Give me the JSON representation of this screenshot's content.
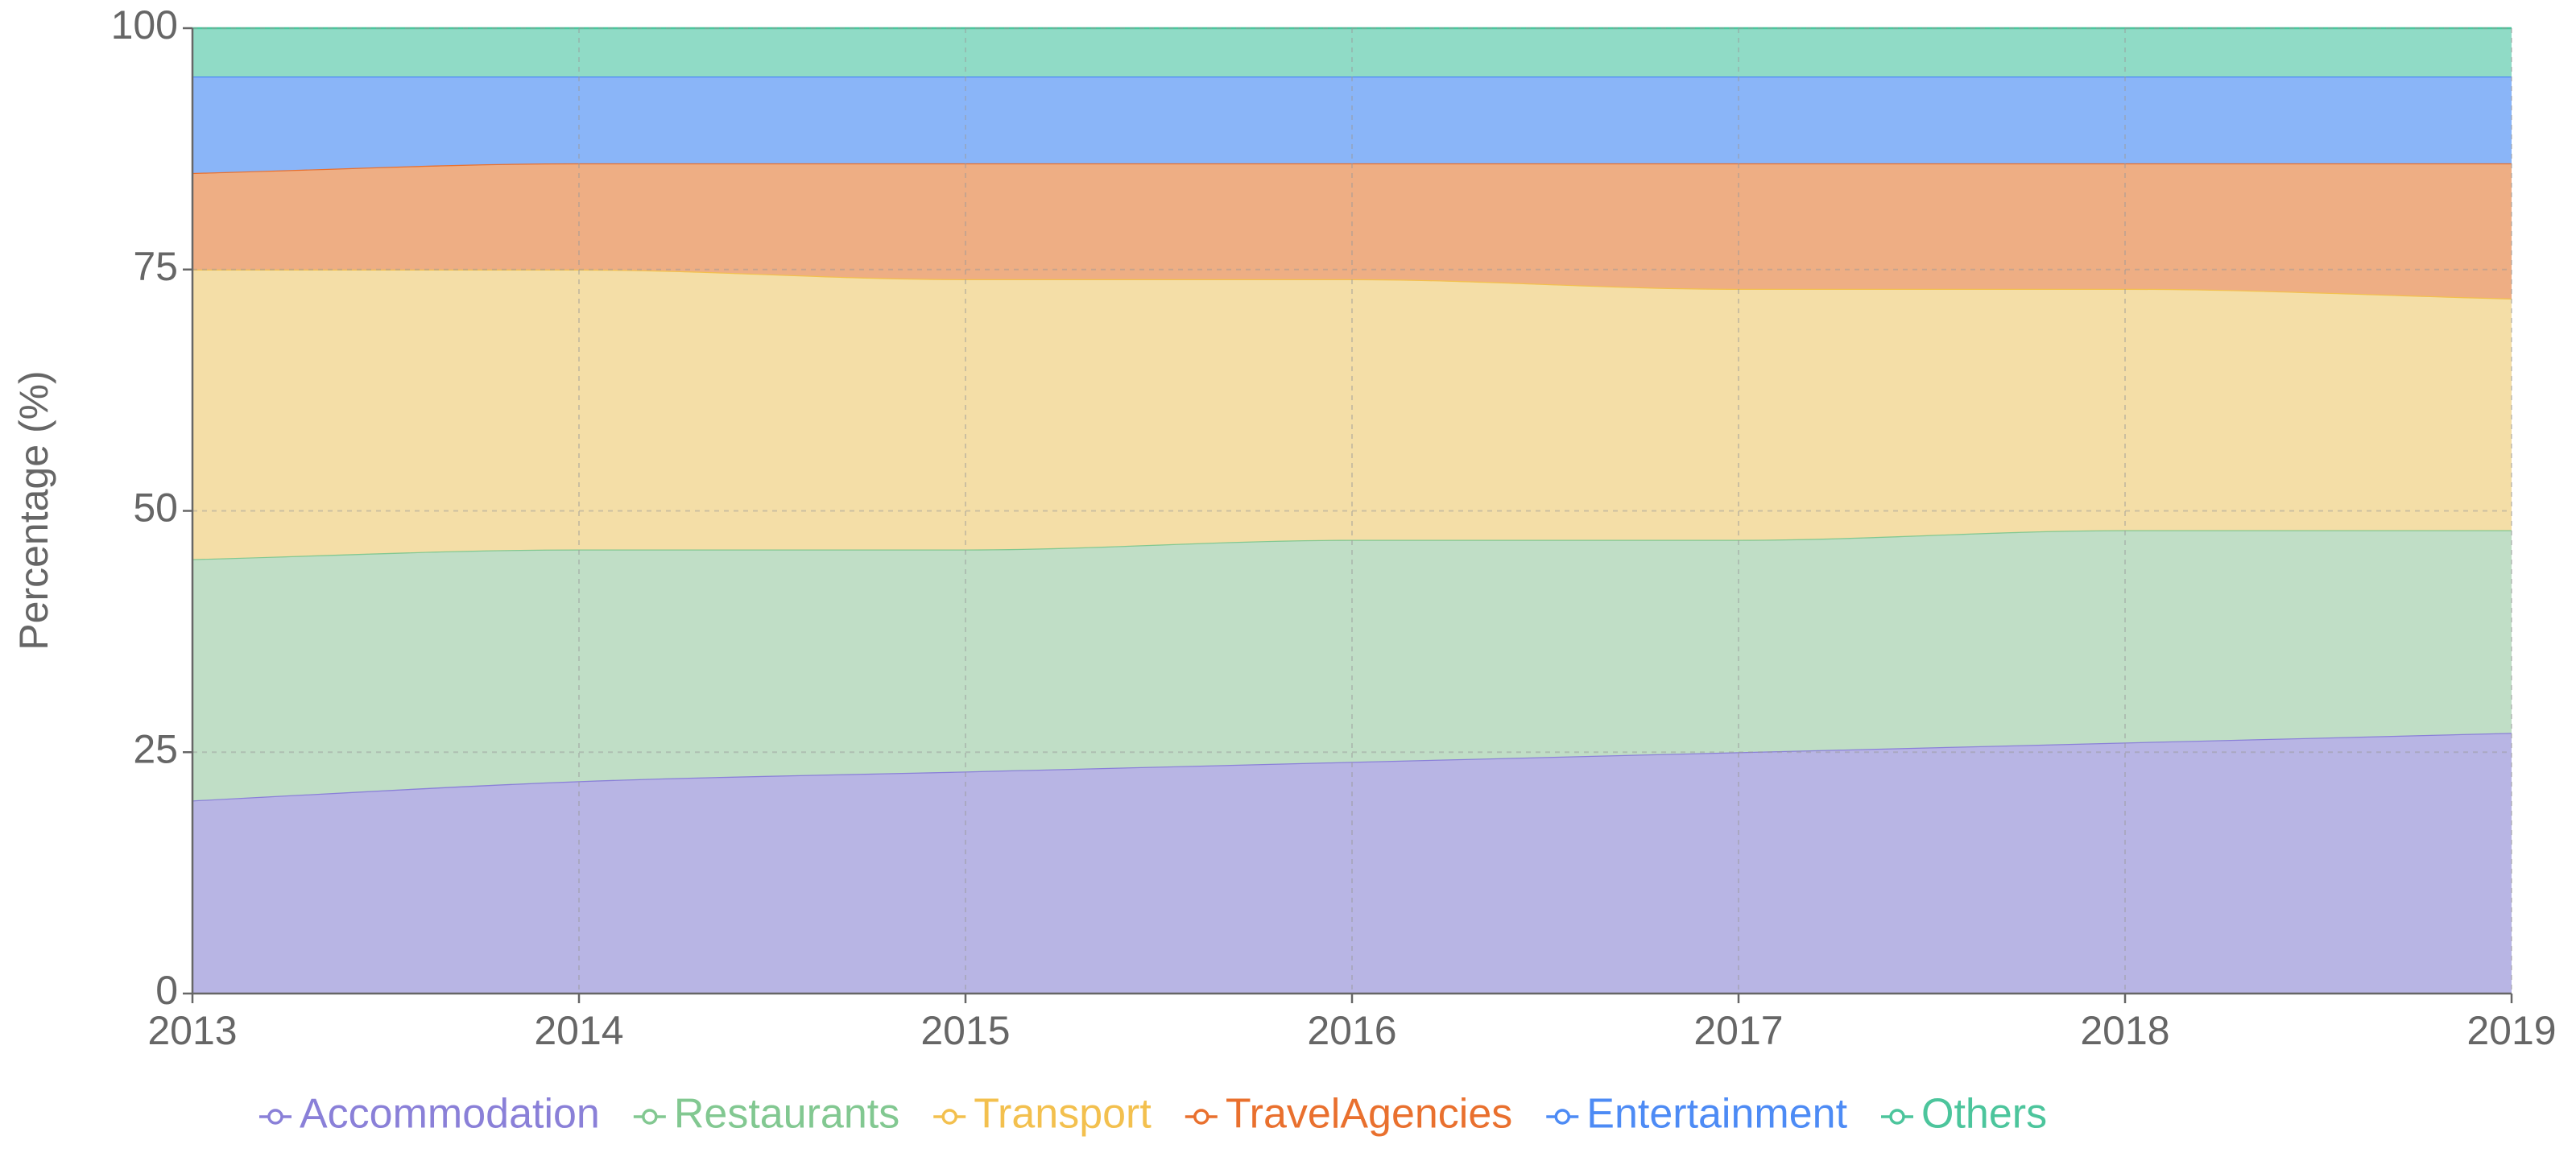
{
  "chart_data": {
    "type": "stacked-area",
    "y_label": "Percentage (%)",
    "x": [
      2013,
      2014,
      2015,
      2016,
      2017,
      2018,
      2019
    ],
    "xlim": [
      2013,
      2019
    ],
    "xticks": [
      2013,
      2014,
      2015,
      2016,
      2017,
      2018,
      2019
    ],
    "ylim": [
      0,
      100
    ],
    "yticks": [
      0,
      25,
      50,
      75,
      100
    ],
    "grid": true,
    "series": [
      {
        "name": "Accommodation",
        "color": "#8a80d8",
        "fill": "#b8b5e4",
        "values": [
          20,
          22,
          23,
          24,
          25,
          26,
          27
        ]
      },
      {
        "name": "Restaurants",
        "color": "#82c891",
        "fill": "#c0dec6",
        "values": [
          25,
          24,
          23,
          23,
          22,
          22,
          21
        ]
      },
      {
        "name": "Transport",
        "color": "#f3c04e",
        "fill": "#f4dea7",
        "values": [
          30,
          29,
          28,
          27,
          26,
          25,
          24
        ]
      },
      {
        "name": "TravelAgencies",
        "color": "#e9702e",
        "fill": "#eeae84",
        "values": [
          10,
          11,
          12,
          12,
          13,
          13,
          14
        ]
      },
      {
        "name": "Entertainment",
        "color": "#4d8bf5",
        "fill": "#8ab5f8",
        "values": [
          10,
          9,
          9,
          9,
          9,
          9,
          9
        ]
      },
      {
        "name": "Others",
        "color": "#4cc59c",
        "fill": "#90dbc6",
        "values": [
          5,
          5,
          5,
          5,
          5,
          5,
          5
        ]
      }
    ]
  }
}
